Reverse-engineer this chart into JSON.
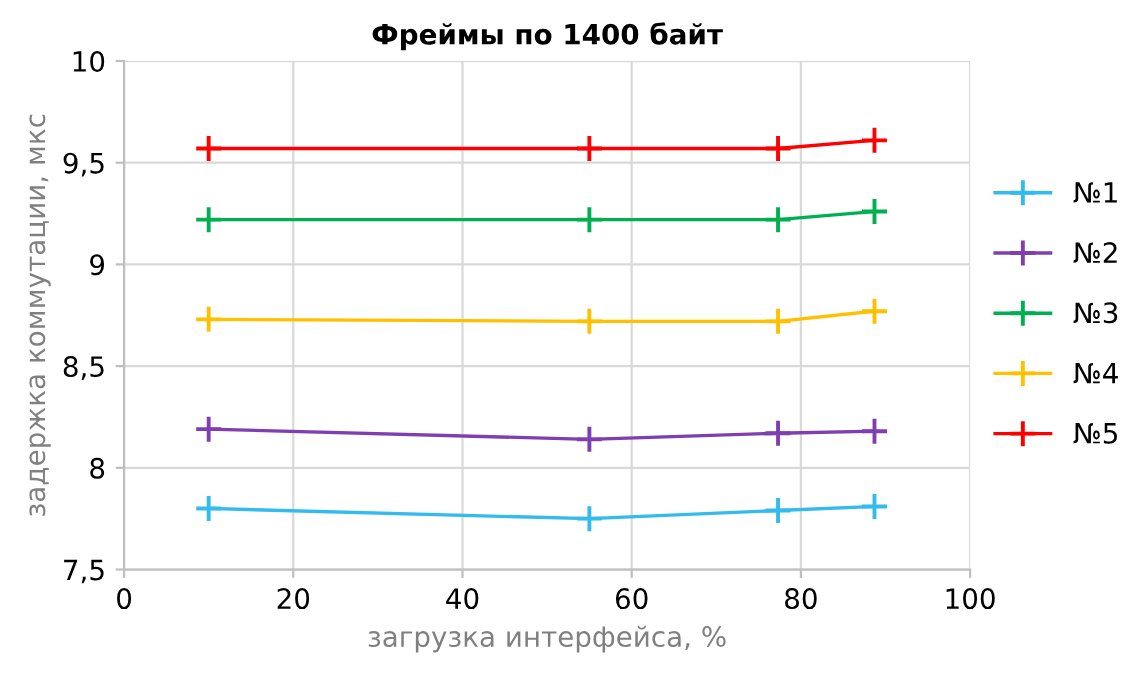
{
  "chart_data": {
    "type": "line",
    "title": "Фреймы по 1400 байт",
    "xlabel": "загрузка интерфейса, %",
    "ylabel": "задержка коммутации, мкс",
    "x": [
      10,
      55,
      77.3,
      88.7
    ],
    "series": [
      {
        "name": "№1",
        "color": "#33bbee",
        "values": [
          7.8,
          7.75,
          7.79,
          7.81
        ]
      },
      {
        "name": "№2",
        "color": "#7f3fb0",
        "values": [
          8.19,
          8.14,
          8.17,
          8.18
        ]
      },
      {
        "name": "№3",
        "color": "#00b050",
        "values": [
          9.22,
          9.22,
          9.22,
          9.26
        ]
      },
      {
        "name": "№4",
        "color": "#ffc000",
        "values": [
          8.73,
          8.72,
          8.72,
          8.77
        ]
      },
      {
        "name": "№5",
        "color": "#ff0000",
        "values": [
          9.57,
          9.57,
          9.57,
          9.61
        ]
      }
    ],
    "xlim": [
      0,
      100
    ],
    "xticks": [
      0,
      20,
      40,
      60,
      80,
      100
    ],
    "ylim": [
      7.5,
      10
    ],
    "yticks": [
      {
        "value": 7.5,
        "label": "7,5"
      },
      8,
      {
        "value": 8.5,
        "label": "8,5"
      },
      9,
      {
        "value": 9.5,
        "label": "9,5"
      },
      10
    ],
    "grid": true,
    "legend": "right",
    "marker": "cross",
    "line_style": "solid"
  }
}
